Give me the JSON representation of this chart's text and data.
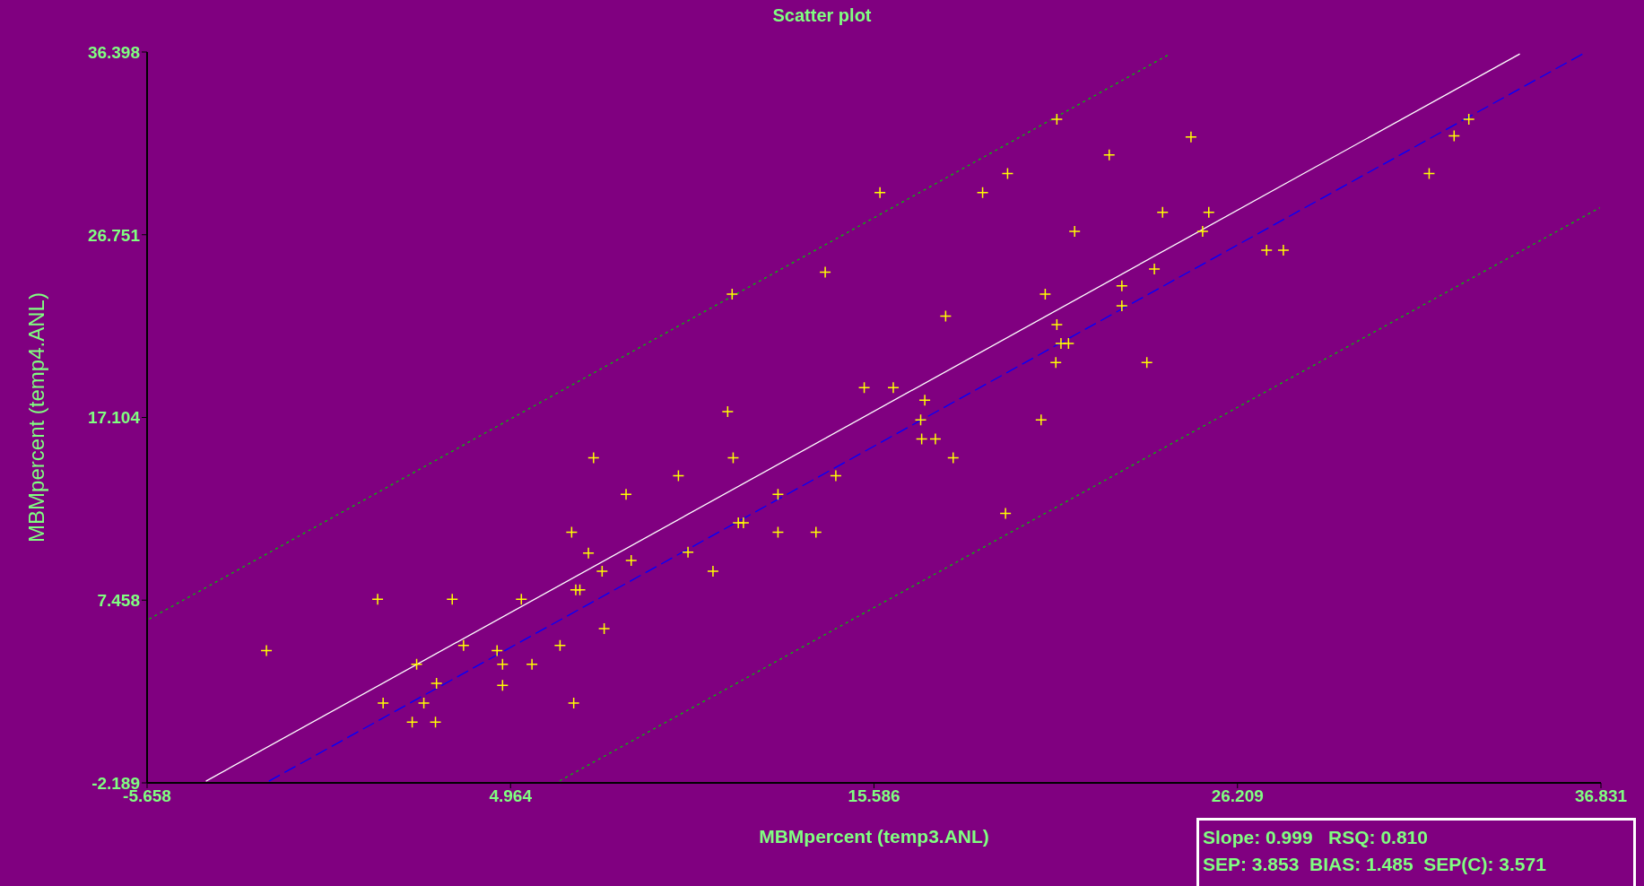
{
  "chart_data": {
    "type": "scatter",
    "title": "Scatter plot",
    "xlabel": "MBMpercent (temp3.ANL)",
    "ylabel": "MBMpercent (temp4.ANL)",
    "xlim": [
      -5.658,
      36.831
    ],
    "ylim": [
      -2.189,
      36.398
    ],
    "xticks": [
      -5.658,
      4.964,
      15.586,
      26.209,
      36.831
    ],
    "yticks": [
      -2.189,
      7.458,
      17.104,
      26.751,
      36.398
    ],
    "grid": false,
    "legend": false,
    "annotations": [
      "Slope: 0.999   RSQ: 0.810",
      "SEP: 3.853  BIAS: 1.485  SEP(C): 3.571"
    ],
    "series": [
      {
        "marker": "cross",
        "color": "#ffff00",
        "x": [
          -2.17,
          1.08,
          1.24,
          2.09,
          2.22,
          2.43,
          2.77,
          2.8,
          3.26,
          3.59,
          4.57,
          4.73,
          4.73,
          5.28,
          5.59,
          6.41,
          6.75,
          6.81,
          6.87,
          6.99,
          7.24,
          7.39,
          7.64,
          7.7,
          8.34,
          8.49,
          9.87,
          10.15,
          10.88,
          11.31,
          11.44,
          11.47,
          11.62,
          11.77,
          12.78,
          12.78,
          13.89,
          14.16,
          14.47,
          15.3,
          15.76,
          16.15,
          16.95,
          16.98,
          17.07,
          17.38,
          17.68,
          17.9,
          18.76,
          19.43,
          19.49,
          20.47,
          20.59,
          20.9,
          20.93,
          20.93,
          21.05,
          21.27,
          21.45,
          22.46,
          22.83,
          22.83,
          23.56,
          23.78,
          24.02,
          24.85,
          25.19,
          25.37,
          27.06,
          27.55,
          31.81,
          32.54,
          32.97
        ],
        "values": [
          4.79,
          7.5,
          2.02,
          1.02,
          4.07,
          2.02,
          1.02,
          3.07,
          7.5,
          5.07,
          4.79,
          4.07,
          2.96,
          7.5,
          4.07,
          5.07,
          11.04,
          2.02,
          8.0,
          8.0,
          9.94,
          14.97,
          8.99,
          5.95,
          13.04,
          9.55,
          14.03,
          9.99,
          8.99,
          17.41,
          23.61,
          14.97,
          11.54,
          11.54,
          13.04,
          11.04,
          11.04,
          24.77,
          14.03,
          18.68,
          28.98,
          18.68,
          16.97,
          15.97,
          18.02,
          15.97,
          22.45,
          14.97,
          28.98,
          12.04,
          29.98,
          16.97,
          23.61,
          20.01,
          22.0,
          32.85,
          21.01,
          21.01,
          26.93,
          30.97,
          24.05,
          23.0,
          20.01,
          24.94,
          27.93,
          31.91,
          26.93,
          27.93,
          25.93,
          25.93,
          29.98,
          31.97,
          32.85
        ]
      },
      {
        "type": "line",
        "marker": "none",
        "color": "#ffffff",
        "line_style": "solid",
        "x": [
          -3.94,
          34.46
        ],
        "values": [
          -2.1,
          36.3
        ]
      },
      {
        "type": "line",
        "marker": "none",
        "color": "#0000ff",
        "line_style": "dashed",
        "x": [
          -2.1,
          36.3
        ],
        "values": [
          -2.1,
          36.3
        ]
      },
      {
        "type": "line",
        "marker": "none",
        "color": "#00c000",
        "line_style": "dotted",
        "x": [
          -5.6,
          24.24
        ],
        "values": [
          6.46,
          36.3
        ]
      },
      {
        "type": "line",
        "marker": "none",
        "color": "#00c000",
        "line_style": "dotted",
        "x": [
          6.4,
          36.8
        ],
        "values": [
          -2.08,
          28.18
        ]
      }
    ]
  }
}
